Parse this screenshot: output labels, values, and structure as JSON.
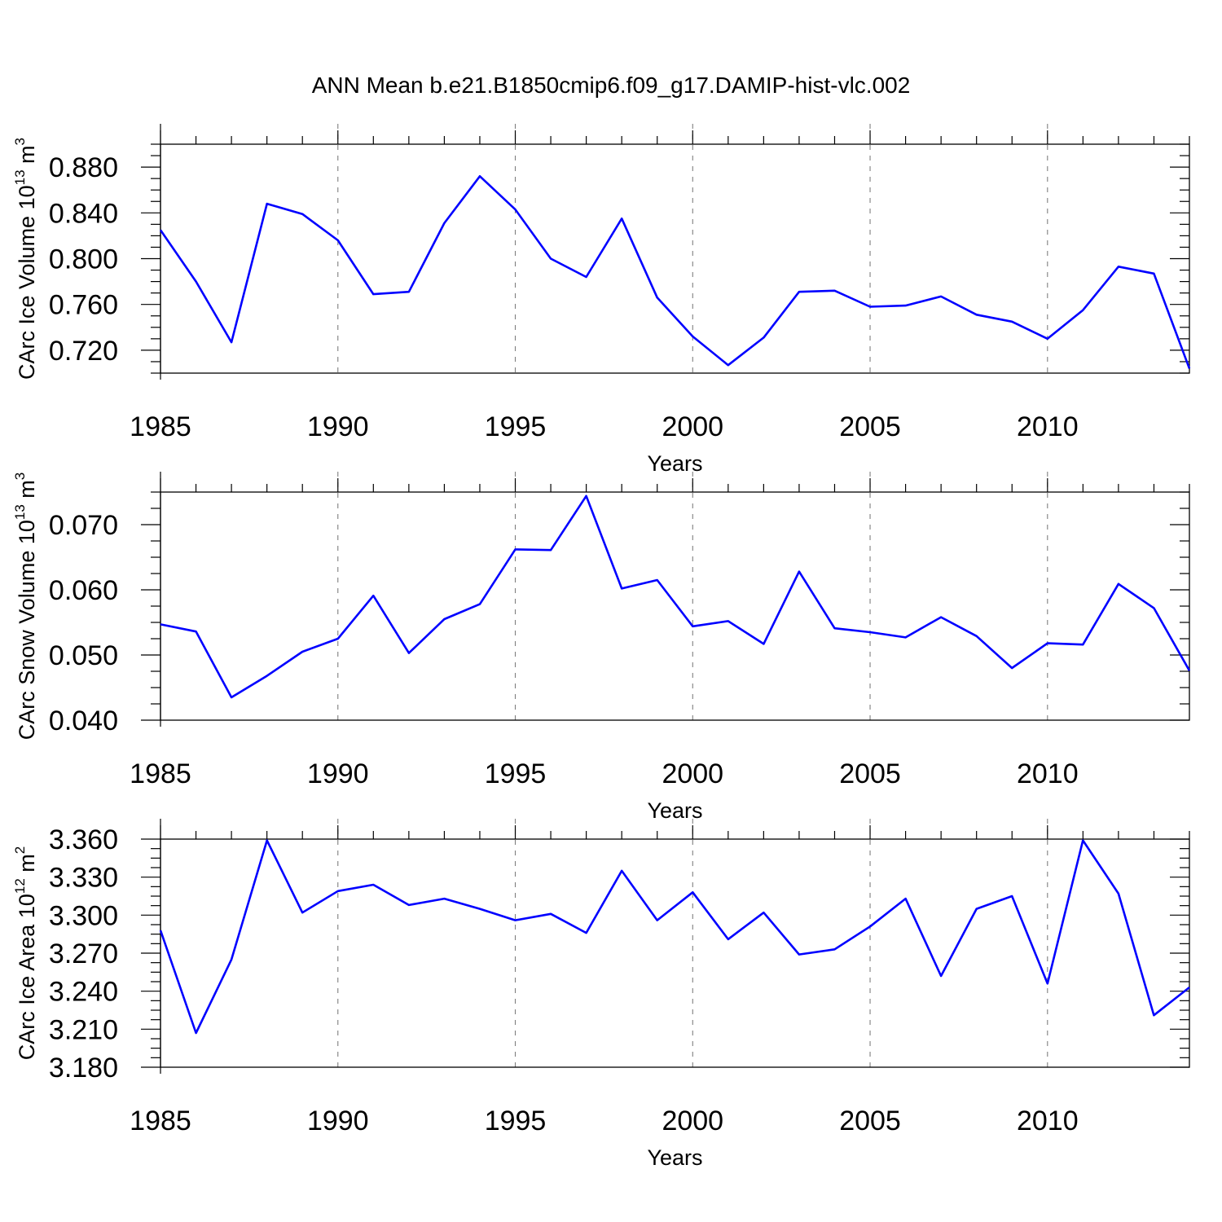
{
  "figure": {
    "title": "ANN Mean b.e21.B1850cmip6.f09_g17.DAMIP-hist-vlc.002"
  },
  "chart_data": [
    {
      "type": "line",
      "ylabel_main": "CArc Ice Volume 10",
      "ylabel_exp": "13",
      "ylabel_unit": " m",
      "ylabel_unit_exp": "3",
      "xlabel": "Years",
      "xlim": [
        1985,
        2014
      ],
      "ylim": [
        0.7,
        0.9
      ],
      "yticks": [
        0.72,
        0.76,
        0.8,
        0.84,
        0.88
      ],
      "ytick_labels": [
        "0.720",
        "0.760",
        "0.800",
        "0.840",
        "0.880"
      ],
      "xticks": [
        1985,
        1990,
        1995,
        2000,
        2005,
        2010
      ],
      "xtick_labels": [
        "1985",
        "1990",
        "1995",
        "2000",
        "2005",
        "2010"
      ],
      "grid": "vertical dashed at major x ticks",
      "color": "#0000ff",
      "x": [
        1985,
        1986,
        1987,
        1988,
        1989,
        1990,
        1991,
        1992,
        1993,
        1994,
        1995,
        1996,
        1997,
        1998,
        1999,
        2000,
        2001,
        2002,
        2003,
        2004,
        2005,
        2006,
        2007,
        2008,
        2009,
        2010,
        2011,
        2012,
        2013,
        2014
      ],
      "y": [
        0.825,
        0.78,
        0.727,
        0.848,
        0.839,
        0.816,
        0.769,
        0.771,
        0.831,
        0.872,
        0.843,
        0.8,
        0.784,
        0.835,
        0.766,
        0.732,
        0.707,
        0.731,
        0.771,
        0.772,
        0.758,
        0.759,
        0.767,
        0.751,
        0.745,
        0.73,
        0.755,
        0.793,
        0.787,
        0.704
      ]
    },
    {
      "type": "line",
      "ylabel_main": "CArc Snow Volume 10",
      "ylabel_exp": "13",
      "ylabel_unit": " m",
      "ylabel_unit_exp": "3",
      "xlabel": "Years",
      "xlim": [
        1985,
        2014
      ],
      "ylim": [
        0.04,
        0.075
      ],
      "yticks": [
        0.04,
        0.05,
        0.06,
        0.07
      ],
      "ytick_labels": [
        "0.040",
        "0.050",
        "0.060",
        "0.070"
      ],
      "xticks": [
        1985,
        1990,
        1995,
        2000,
        2005,
        2010
      ],
      "xtick_labels": [
        "1985",
        "1990",
        "1995",
        "2000",
        "2005",
        "2010"
      ],
      "grid": "vertical dashed at major x ticks",
      "color": "#0000ff",
      "x": [
        1985,
        1986,
        1987,
        1988,
        1989,
        1990,
        1991,
        1992,
        1993,
        1994,
        1995,
        1996,
        1997,
        1998,
        1999,
        2000,
        2001,
        2002,
        2003,
        2004,
        2005,
        2006,
        2007,
        2008,
        2009,
        2010,
        2011,
        2012,
        2013,
        2014
      ],
      "y": [
        0.0547,
        0.0536,
        0.0435,
        0.0468,
        0.0505,
        0.0525,
        0.0591,
        0.0503,
        0.0555,
        0.0578,
        0.0662,
        0.0661,
        0.0744,
        0.0602,
        0.0615,
        0.0544,
        0.0552,
        0.0517,
        0.0628,
        0.0541,
        0.0535,
        0.0527,
        0.0558,
        0.0529,
        0.048,
        0.0518,
        0.0516,
        0.0609,
        0.0572,
        0.0476
      ]
    },
    {
      "type": "line",
      "ylabel_main": "CArc Ice Area 10",
      "ylabel_exp": "12",
      "ylabel_unit": " m",
      "ylabel_unit_exp": "2",
      "xlabel": "Years",
      "xlim": [
        1985,
        2014
      ],
      "ylim": [
        3.18,
        3.36
      ],
      "yticks": [
        3.18,
        3.21,
        3.24,
        3.27,
        3.3,
        3.33,
        3.36
      ],
      "ytick_labels": [
        "3.180",
        "3.210",
        "3.240",
        "3.270",
        "3.300",
        "3.330",
        "3.360"
      ],
      "xticks": [
        1985,
        1990,
        1995,
        2000,
        2005,
        2010
      ],
      "xtick_labels": [
        "1985",
        "1990",
        "1995",
        "2000",
        "2005",
        "2010"
      ],
      "grid": "vertical dashed at major x ticks",
      "color": "#0000ff",
      "x": [
        1985,
        1986,
        1987,
        1988,
        1989,
        1990,
        1991,
        1992,
        1993,
        1994,
        1995,
        1996,
        1997,
        1998,
        1999,
        2000,
        2001,
        2002,
        2003,
        2004,
        2005,
        2006,
        2007,
        2008,
        2009,
        2010,
        2011,
        2012,
        2013,
        2014
      ],
      "y": [
        3.288,
        3.207,
        3.265,
        3.359,
        3.302,
        3.319,
        3.324,
        3.308,
        3.313,
        3.305,
        3.296,
        3.301,
        3.286,
        3.335,
        3.296,
        3.318,
        3.281,
        3.302,
        3.269,
        3.273,
        3.291,
        3.313,
        3.252,
        3.305,
        3.315,
        3.246,
        3.359,
        3.317,
        3.221,
        3.243
      ]
    }
  ]
}
